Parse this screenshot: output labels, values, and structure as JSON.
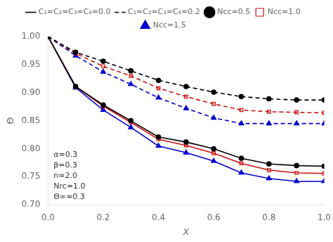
{
  "chart_data": {
    "type": "line",
    "xlabel": "X",
    "ylabel": "Θ",
    "x": [
      0.0,
      0.1,
      0.2,
      0.3,
      0.4,
      0.5,
      0.6,
      0.7,
      0.8,
      0.9,
      1.0
    ],
    "series": [
      {
        "color": "#000000",
        "line_style": "solid",
        "marker": "circle",
        "values": [
          1.0,
          0.911,
          0.878,
          0.85,
          0.821,
          0.812,
          0.8,
          0.783,
          0.773,
          0.77,
          0.769
        ]
      },
      {
        "color": "#cc1111",
        "line_style": "solid",
        "marker": "open_square",
        "values": [
          1.0,
          0.911,
          0.876,
          0.847,
          0.817,
          0.806,
          0.792,
          0.774,
          0.762,
          0.757,
          0.756
        ]
      },
      {
        "color": "#0000cc",
        "line_style": "solid",
        "marker": "triangle",
        "values": [
          1.0,
          0.909,
          0.869,
          0.838,
          0.805,
          0.793,
          0.778,
          0.757,
          0.747,
          0.742,
          0.742
        ]
      },
      {
        "color": "#000000",
        "line_style": "dashed",
        "marker": "circle",
        "values": [
          1.0,
          0.972,
          0.956,
          0.939,
          0.922,
          0.911,
          0.901,
          0.893,
          0.889,
          0.887,
          0.887
        ]
      },
      {
        "color": "#cc1111",
        "line_style": "dashed",
        "marker": "open_square",
        "values": [
          1.0,
          0.97,
          0.947,
          0.93,
          0.908,
          0.893,
          0.88,
          0.869,
          0.866,
          0.865,
          0.864
        ]
      },
      {
        "color": "#0000cc",
        "line_style": "dashed",
        "marker": "triangle",
        "values": [
          1.0,
          0.966,
          0.937,
          0.915,
          0.891,
          0.872,
          0.855,
          0.845,
          0.845,
          0.845,
          0.845
        ]
      }
    ],
    "xlim": [
      0.0,
      1.0
    ],
    "ylim": [
      0.7,
      1.0
    ],
    "xticks": [
      {
        "value": 0.0,
        "label": "0.0"
      },
      0.2,
      0.4,
      0.6,
      0.8,
      {
        "value": 1.0,
        "label": "1.0"
      }
    ],
    "yticks": [
      {
        "value": 0.7,
        "label": "0.70"
      },
      0.75,
      {
        "value": 0.8,
        "label": "0.80"
      },
      0.85,
      {
        "value": 0.9,
        "label": "0.90"
      },
      0.95,
      {
        "value": 1.0,
        "label": "1.00"
      }
    ],
    "grid": false,
    "legend": "top",
    "legend_entries": [
      {
        "name": "C₁=C₂=C₃=C₄=0.0",
        "color": "#000000",
        "line_style": "solid"
      },
      {
        "name": "C₁=C₂=C₃=C₄=0.2",
        "color": "#000000",
        "line_style": "dashed"
      },
      {
        "name": "Ncc=0.5",
        "color": "#000000",
        "marker": "circle"
      },
      {
        "name": "Ncc=1.0",
        "color": "#cc1111",
        "marker": "open_square"
      },
      {
        "name": "Ncc=1.5",
        "color": "#0000cc",
        "marker": "triangle"
      }
    ],
    "annotations": [
      "α=0.3",
      "β=0.3",
      "n=2.0",
      "Nrc=1.0",
      "Θ∞=0.3"
    ]
  }
}
